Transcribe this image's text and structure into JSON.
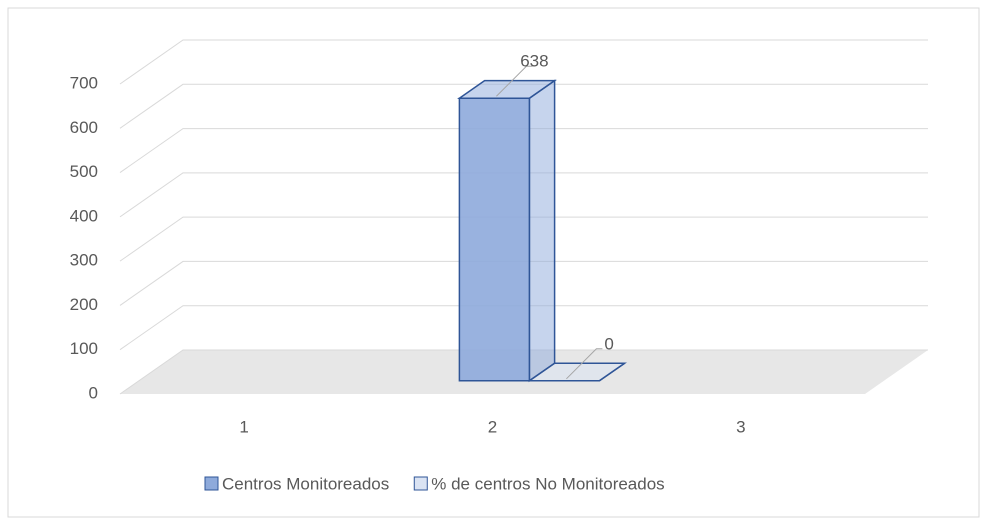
{
  "chart_data": {
    "type": "bar3d",
    "categories": [
      "1",
      "2",
      "3"
    ],
    "series": [
      {
        "name": "Centros Monitoreados",
        "color": "#8eaadb",
        "values": [
          null,
          638,
          null
        ]
      },
      {
        "name": "% de centros No Monitoreados",
        "color": "#dae3f3",
        "values": [
          null,
          0,
          null
        ]
      }
    ],
    "ylim": [
      0,
      700
    ],
    "yticks": [
      0,
      100,
      200,
      300,
      400,
      500,
      600,
      700
    ],
    "grid": true,
    "legend": "bottom"
  }
}
